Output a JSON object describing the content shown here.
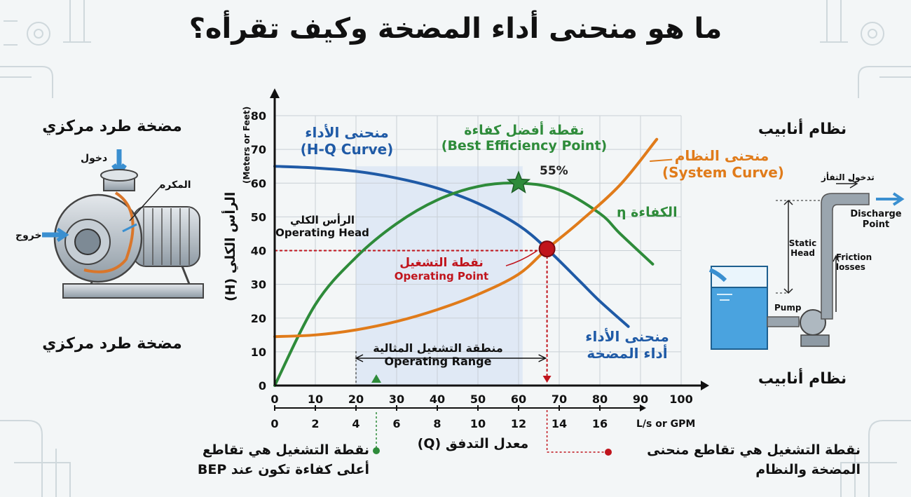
{
  "title": "ما هو منحنى أداء المضخة وكيف تقرأه؟",
  "pump_panel": {
    "label_top": "مضخة طرد مركزي",
    "label_bottom": "مضخة طرد مركزي",
    "inlet_label": "دخول",
    "impeller_label": "المكره",
    "outlet_label": "خروج"
  },
  "piping_panel": {
    "label_top": "نظام أنابيب",
    "label_bottom": "نظام أنابيب",
    "flow_entry_label": "تدخول التفأز",
    "discharge_label_1": "Discharge",
    "discharge_label_2": "Point",
    "static_head_1": "Static",
    "static_head_2": "Head",
    "friction_1": "Friction",
    "friction_2": "losses",
    "pump_label": "Pump"
  },
  "chart_data": {
    "type": "line",
    "ylabel_ar": "الرأس الكلي (H)",
    "ylabel_en": "(Meters or Feet)",
    "xlabel_ar": "معدل التدفق (Q)",
    "x_units_label": "L/s or GPM",
    "x_ticks": [
      0,
      10,
      20,
      30,
      40,
      50,
      60,
      70,
      80,
      90,
      100
    ],
    "x2_ticks": [
      0,
      2,
      4,
      6,
      8,
      10,
      12,
      14,
      16
    ],
    "y_ticks": [
      0,
      10,
      20,
      30,
      40,
      50,
      60,
      70,
      80
    ],
    "xlim": [
      0,
      100
    ],
    "ylim": [
      0,
      80
    ],
    "grid": true,
    "series": [
      {
        "key": "hq",
        "color": "#1f5aa6",
        "x": [
          0,
          10,
          20,
          30,
          40,
          50,
          60,
          67,
          75,
          80,
          87
        ],
        "y": [
          65,
          64.5,
          63.5,
          61.5,
          58.5,
          54,
          47.5,
          40.5,
          31,
          25,
          17.5
        ]
      },
      {
        "key": "efficiency",
        "color": "#2e8b3a",
        "x": [
          0,
          10,
          20,
          30,
          40,
          50,
          60,
          70,
          80,
          85,
          93
        ],
        "y": [
          0,
          24,
          38,
          48,
          55,
          59,
          60,
          58,
          51,
          45,
          36
        ]
      },
      {
        "key": "system",
        "color": "#e07b1a",
        "x": [
          0,
          10,
          20,
          30,
          40,
          50,
          60,
          67,
          75,
          85,
          94
        ],
        "y": [
          14.5,
          15,
          16.5,
          19,
          22.5,
          27,
          33,
          40.5,
          48.5,
          59.5,
          73
        ]
      }
    ],
    "bep": {
      "x": 60,
      "y": 60,
      "percent_label": "55%"
    },
    "operating_point": {
      "x": 67,
      "y": 40.5
    },
    "operating_range": [
      20,
      61
    ],
    "labels": {
      "hq_ar": "منحنى الأداء",
      "hq_en": "(H-Q Curve)",
      "bep_ar": "نقطة أفضل كفاءة",
      "bep_en": "(Best Efficiency Point)",
      "system_ar": "منحنى النظام",
      "system_en": "(System Curve)",
      "efficiency": "الكفاءة η",
      "op_head_ar": "الرأس الكلي",
      "op_head_en": "Operating Head",
      "op_point_ar": "نقطة التشغيل",
      "op_point_en": "Operating Point",
      "hq_bottom_1": "منحنى الأداء",
      "hq_bottom_2": "أداء المضخة",
      "range_ar": "منطقة التشغيل المثالية",
      "range_en": "Operating Range"
    }
  },
  "notes": {
    "left_1": "نقطة التشغيل هي تقاطع",
    "left_2": "أعلى كفاءة تكون عند BEP",
    "right_1": "نقطة التشغيل هي تقاطع منحنى",
    "right_2": "المضخة والنظام"
  },
  "colors": {
    "blue": "#1f5aa6",
    "green": "#2e8b3a",
    "orange": "#e07b1a",
    "red": "#c0141c",
    "water": "#4aa3df"
  }
}
